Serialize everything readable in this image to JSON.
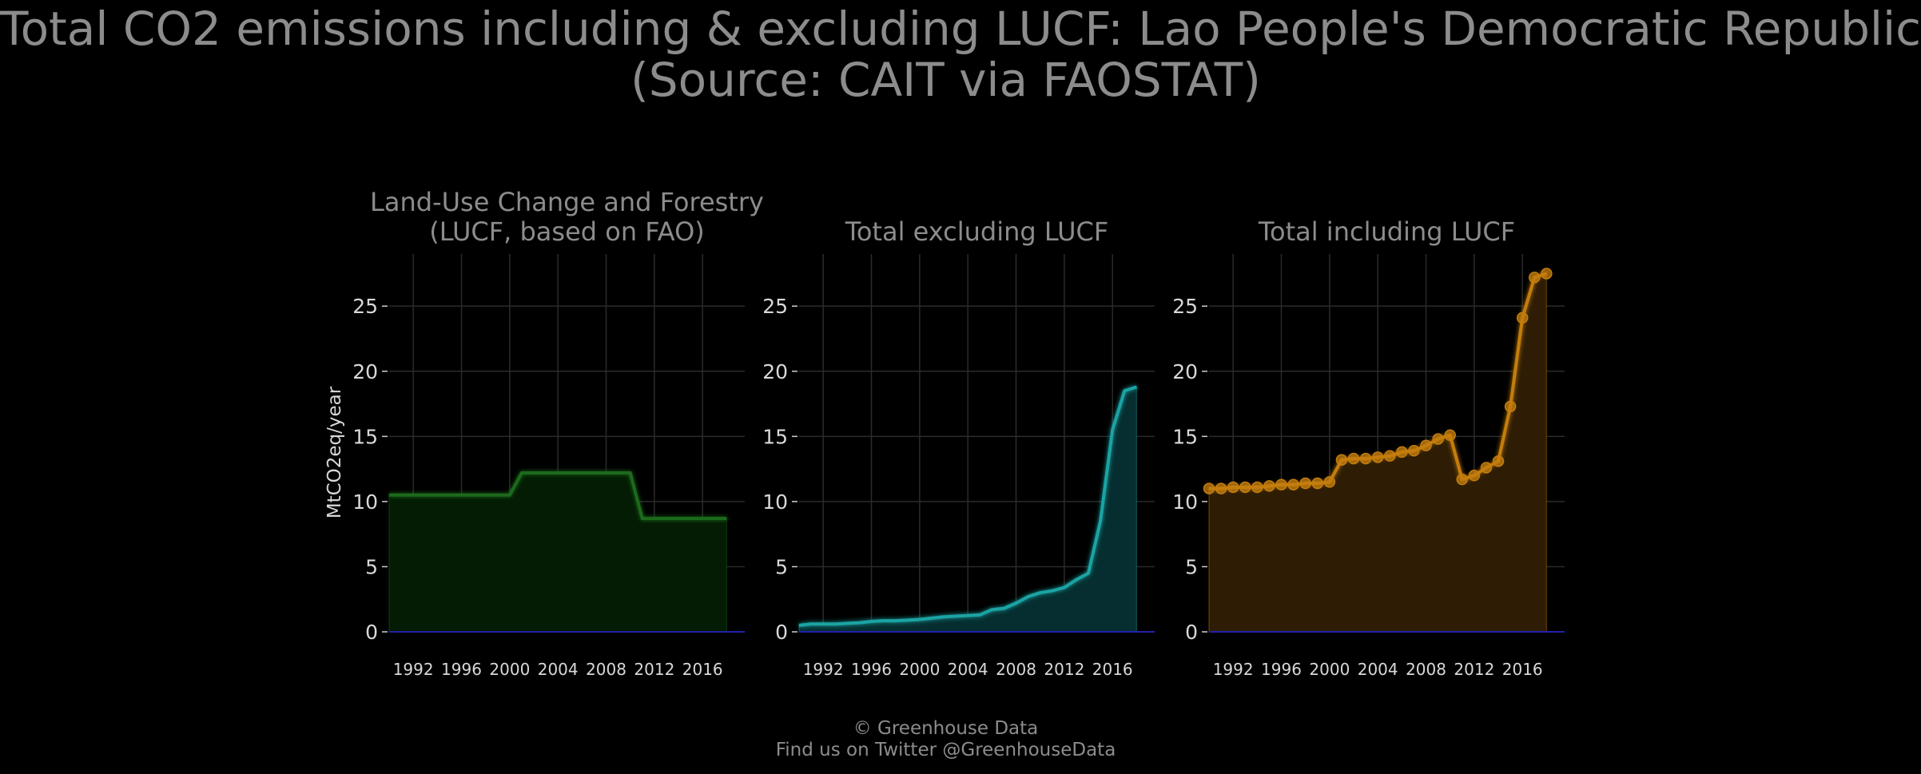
{
  "title": {
    "line1": "Total CO2 emissions including & excluding LUCF: Lao People's Democratic Republic",
    "line2": "(Source: CAIT via FAOSTAT)"
  },
  "footer": {
    "line1": "© Greenhouse Data",
    "line2": "Find us on Twitter @GreenhouseData"
  },
  "chart_data": [
    {
      "type": "area",
      "title_lines": [
        "Land-Use Change and Forestry",
        "(LUCF, based on FAO)"
      ],
      "ylabel": "MtCO2eq/year",
      "xlim": [
        1990,
        2019.5
      ],
      "ylim": [
        0,
        29
      ],
      "yticks": [
        0,
        5,
        10,
        15,
        20,
        25
      ],
      "xticks": [
        1992,
        1996,
        2000,
        2004,
        2008,
        2012,
        2016
      ],
      "grid": true,
      "color": "#1a6b1a",
      "fill": "#031c03",
      "markers": false,
      "x": [
        1990,
        1991,
        1992,
        1993,
        1994,
        1995,
        1996,
        1997,
        1998,
        1999,
        2000,
        2001,
        2002,
        2003,
        2004,
        2005,
        2006,
        2007,
        2008,
        2009,
        2010,
        2011,
        2012,
        2013,
        2014,
        2015,
        2016,
        2017,
        2018
      ],
      "values": [
        10.5,
        10.5,
        10.5,
        10.5,
        10.5,
        10.5,
        10.5,
        10.5,
        10.5,
        10.5,
        10.5,
        12.2,
        12.2,
        12.2,
        12.2,
        12.2,
        12.2,
        12.2,
        12.2,
        12.2,
        12.2,
        8.7,
        8.7,
        8.7,
        8.7,
        8.7,
        8.7,
        8.7,
        8.7
      ]
    },
    {
      "type": "area",
      "title_lines": [
        "Total excluding LUCF"
      ],
      "ylabel": "",
      "xlim": [
        1990,
        2019.5
      ],
      "ylim": [
        0,
        29
      ],
      "yticks": [
        0,
        5,
        10,
        15,
        20,
        25
      ],
      "xticks": [
        1992,
        1996,
        2000,
        2004,
        2008,
        2012,
        2016
      ],
      "grid": true,
      "color": "#1aa3a3",
      "fill": "#062e30",
      "markers": false,
      "x": [
        1990,
        1991,
        1992,
        1993,
        1994,
        1995,
        1996,
        1997,
        1998,
        1999,
        2000,
        2001,
        2002,
        2003,
        2004,
        2005,
        2006,
        2007,
        2008,
        2009,
        2010,
        2011,
        2012,
        2013,
        2014,
        2015,
        2016,
        2017,
        2018
      ],
      "values": [
        0.5,
        0.6,
        0.6,
        0.6,
        0.65,
        0.7,
        0.8,
        0.85,
        0.85,
        0.9,
        0.95,
        1.05,
        1.15,
        1.2,
        1.25,
        1.3,
        1.7,
        1.8,
        2.2,
        2.7,
        3.0,
        3.15,
        3.4,
        4.0,
        4.5,
        8.5,
        15.5,
        18.5,
        18.8
      ]
    },
    {
      "type": "area",
      "title_lines": [
        "Total including LUCF"
      ],
      "ylabel": "",
      "xlim": [
        1990,
        2019.5
      ],
      "ylim": [
        0,
        29
      ],
      "yticks": [
        0,
        5,
        10,
        15,
        20,
        25
      ],
      "xticks": [
        1992,
        1996,
        2000,
        2004,
        2008,
        2012,
        2016
      ],
      "grid": true,
      "color": "#c47d0e",
      "fill": "#2e1d04",
      "markers": true,
      "x": [
        1990,
        1991,
        1992,
        1993,
        1994,
        1995,
        1996,
        1997,
        1998,
        1999,
        2000,
        2001,
        2002,
        2003,
        2004,
        2005,
        2006,
        2007,
        2008,
        2009,
        2010,
        2011,
        2012,
        2013,
        2014,
        2015,
        2016,
        2017,
        2018
      ],
      "values": [
        11.0,
        11.0,
        11.1,
        11.1,
        11.1,
        11.2,
        11.3,
        11.3,
        11.4,
        11.4,
        11.5,
        13.2,
        13.3,
        13.3,
        13.4,
        13.5,
        13.8,
        13.9,
        14.3,
        14.8,
        15.1,
        11.7,
        12.0,
        12.6,
        13.1,
        17.3,
        24.1,
        27.2,
        27.5
      ]
    }
  ]
}
